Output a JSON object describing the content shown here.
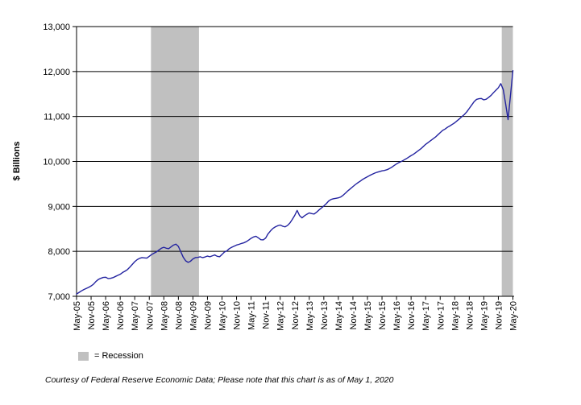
{
  "chart_data": {
    "type": "line",
    "title": "",
    "ylabel": "$ Billions",
    "ylim": [
      7000,
      13000
    ],
    "ytick_step": 1000,
    "ytick_labels": [
      "7,000",
      "8,000",
      "9,000",
      "10,000",
      "11,000",
      "12,000",
      "13,000"
    ],
    "x_tick_labels": [
      "May-05",
      "Nov-05",
      "May-06",
      "Nov-06",
      "May-07",
      "Nov-07",
      "May-08",
      "Nov-08",
      "May-09",
      "Nov-09",
      "May-10",
      "Nov-10",
      "May-11",
      "Nov-11",
      "May-12",
      "Nov-12",
      "May-13",
      "Nov-13",
      "May-14",
      "Nov-14",
      "May-15",
      "Nov-15",
      "May-16",
      "Nov-16",
      "May-17",
      "Nov-17",
      "May-18",
      "Nov-18",
      "May-19",
      "Nov-19",
      "May-20"
    ],
    "x_months_per_tick": 6,
    "x_start_month": "May-05",
    "x_end_month": "May-20",
    "grid": "horizontal-only",
    "legend_position": "bottom-left",
    "legend_label": "= Recession",
    "footnote": "Courtesy of Federal Reserve Economic Data; Please note that this chart is as of May 1, 2020",
    "colors": {
      "line": "#2323a0",
      "recession_band": "#c0c0c0",
      "grid": "#000000",
      "axis": "#000000",
      "text": "#000000",
      "background": "#ffffff"
    },
    "recession_bands": [
      {
        "from": "Dec-07",
        "to": "Jun-09",
        "month_range": [
          30.7,
          50.5
        ]
      },
      {
        "from": "Feb-20",
        "to": "May-20",
        "month_range": [
          175.4,
          180
        ]
      }
    ],
    "monthly_values": [
      7050,
      7085,
      7120,
      7150,
      7175,
      7200,
      7230,
      7270,
      7330,
      7375,
      7400,
      7420,
      7425,
      7395,
      7400,
      7415,
      7440,
      7465,
      7490,
      7530,
      7560,
      7595,
      7650,
      7710,
      7770,
      7815,
      7845,
      7860,
      7855,
      7850,
      7890,
      7930,
      7960,
      7990,
      8030,
      8070,
      8090,
      8070,
      8060,
      8100,
      8140,
      8160,
      8110,
      7990,
      7870,
      7790,
      7755,
      7780,
      7830,
      7860,
      7865,
      7880,
      7860,
      7875,
      7895,
      7880,
      7900,
      7920,
      7890,
      7880,
      7930,
      7985,
      8010,
      8060,
      8090,
      8115,
      8140,
      8155,
      8175,
      8190,
      8215,
      8250,
      8290,
      8320,
      8335,
      8300,
      8260,
      8255,
      8295,
      8390,
      8455,
      8510,
      8545,
      8570,
      8585,
      8560,
      8545,
      8575,
      8630,
      8710,
      8800,
      8910,
      8795,
      8745,
      8790,
      8825,
      8855,
      8840,
      8830,
      8870,
      8920,
      8965,
      9010,
      9060,
      9120,
      9155,
      9170,
      9180,
      9190,
      9210,
      9250,
      9300,
      9350,
      9395,
      9440,
      9485,
      9525,
      9560,
      9600,
      9630,
      9660,
      9690,
      9715,
      9740,
      9760,
      9775,
      9790,
      9800,
      9815,
      9840,
      9870,
      9910,
      9945,
      9975,
      10000,
      10030,
      10060,
      10095,
      10130,
      10160,
      10200,
      10240,
      10280,
      10330,
      10380,
      10420,
      10460,
      10500,
      10540,
      10590,
      10640,
      10690,
      10720,
      10760,
      10790,
      10825,
      10860,
      10905,
      10950,
      11000,
      11045,
      11105,
      11180,
      11255,
      11330,
      11380,
      11395,
      11400,
      11370,
      11385,
      11425,
      11470,
      11530,
      11585,
      11640,
      11730,
      11600,
      11280,
      10930,
      11470,
      12020
    ]
  }
}
